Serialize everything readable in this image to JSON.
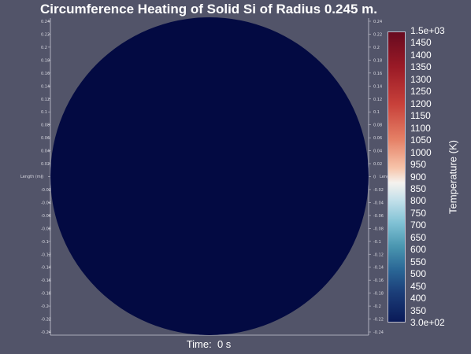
{
  "title": "Circumference Heating of Solid Si of Radius 0.245 m.",
  "time_label": "Time:  0 s",
  "domain_color": "#030a42",
  "background_color": "#525469",
  "axes": {
    "left_label": "Length (m)",
    "right_label": "Length (m)",
    "ticks": [
      "0.24",
      "0.22",
      "0.2",
      "0.18",
      "0.16",
      "0.14",
      "0.12",
      "0.1",
      "0.08",
      "0.06",
      "0.04",
      "0.02",
      "0",
      "-0.02",
      "-0.04",
      "-0.06",
      "-0.08",
      "-0.1",
      "-0.12",
      "-0.14",
      "-0.16",
      "-0.18",
      "-0.2",
      "-0.22",
      "-0.24"
    ]
  },
  "colorbar": {
    "title": "Temperature (K)",
    "colormap": "Rainbow Uniform / blue-white-red",
    "range": [
      300,
      1500
    ],
    "labels": [
      "1.5e+03",
      "1450",
      "1400",
      "1350",
      "1300",
      "1250",
      "1200",
      "1150",
      "1100",
      "1050",
      "1000",
      "950",
      "900",
      "850",
      "800",
      "750",
      "700",
      "650",
      "600",
      "550",
      "500",
      "450",
      "400",
      "350",
      "3.0e+02"
    ],
    "label_values": [
      1500,
      1450,
      1400,
      1350,
      1300,
      1250,
      1200,
      1150,
      1100,
      1050,
      1000,
      950,
      900,
      850,
      800,
      750,
      700,
      650,
      600,
      550,
      500,
      450,
      400,
      350,
      300
    ]
  }
}
